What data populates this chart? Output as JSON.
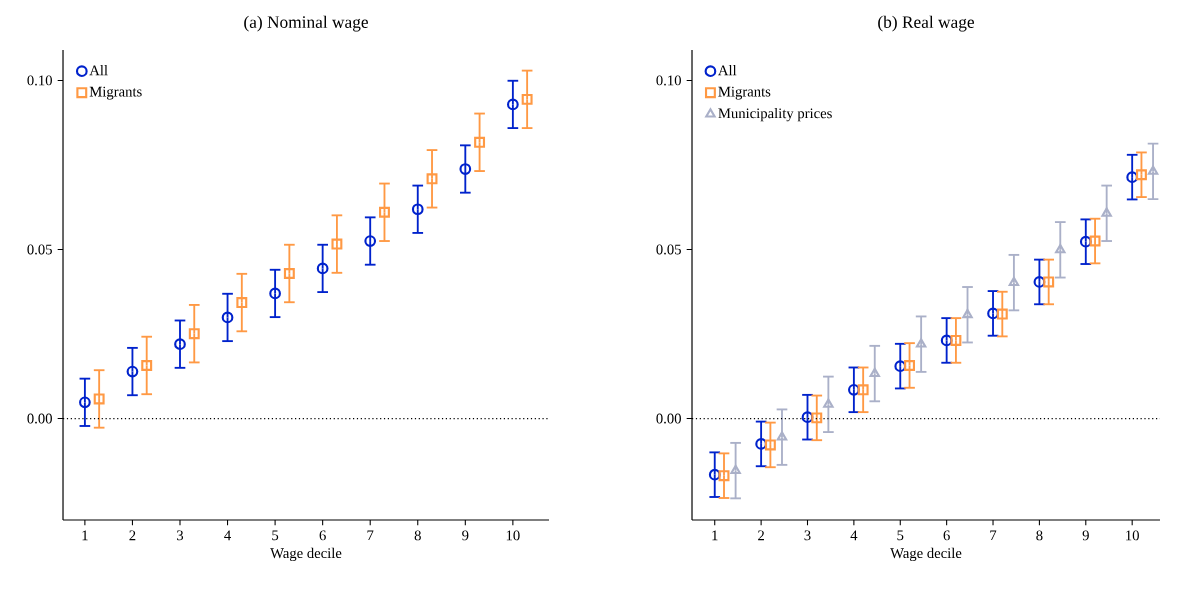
{
  "chart_data": [
    {
      "type": "scatter",
      "title": "(a) Nominal wage",
      "xlabel": "Wage decile",
      "xlim": [
        0.54,
        10.76
      ],
      "xticks": [
        1,
        2,
        3,
        4,
        5,
        6,
        7,
        8,
        9,
        10
      ],
      "ylim": [
        -0.03,
        0.109
      ],
      "yticks": [
        {
          "value": 0,
          "label": "0.00"
        },
        {
          "value": 0.05,
          "label": "0.05"
        },
        {
          "value": 0.1,
          "label": "0.10"
        }
      ],
      "legend": "top left",
      "grid": false,
      "ref_lines": [
        {
          "axis": "y",
          "value": 0,
          "line_style": "dotted",
          "color": "#000000"
        }
      ],
      "series": [
        {
          "name": "All",
          "color": "#0022cc",
          "marker": "circle",
          "x": [
            1,
            2,
            3,
            4,
            5,
            6,
            7,
            8,
            9,
            10
          ],
          "values": [
            0.0048,
            0.0139,
            0.022,
            0.0299,
            0.037,
            0.0444,
            0.0525,
            0.0619,
            0.0738,
            0.0929
          ],
          "errors": [
            0.007,
            0.007,
            0.007,
            0.007,
            0.007,
            0.007,
            0.007,
            0.007,
            0.007,
            0.007
          ]
        },
        {
          "name": "Migrants",
          "color": "#ff9944",
          "marker": "square",
          "x": [
            1.3,
            2.3,
            3.3,
            4.3,
            5.3,
            6.3,
            7.3,
            8.3,
            9.3,
            10.3
          ],
          "values": [
            0.0058,
            0.0157,
            0.0251,
            0.0343,
            0.0429,
            0.0516,
            0.061,
            0.0709,
            0.0817,
            0.0944
          ],
          "errors": [
            0.0085,
            0.0085,
            0.0085,
            0.0085,
            0.0085,
            0.0085,
            0.0085,
            0.0085,
            0.0085,
            0.0085
          ]
        }
      ]
    },
    {
      "type": "scatter",
      "title": "(b) Real wage",
      "xlabel": "Wage decile",
      "xlim": [
        0.51,
        10.6
      ],
      "xticks": [
        1,
        2,
        3,
        4,
        5,
        6,
        7,
        8,
        9,
        10
      ],
      "ylim": [
        -0.03,
        0.109
      ],
      "yticks": [
        {
          "value": 0,
          "label": "0.00"
        },
        {
          "value": 0.05,
          "label": "0.05"
        },
        {
          "value": 0.1,
          "label": "0.10"
        }
      ],
      "legend": "top left",
      "grid": false,
      "ref_lines": [
        {
          "axis": "y",
          "value": 0,
          "line_style": "dotted",
          "color": "#000000"
        }
      ],
      "series": [
        {
          "name": "All",
          "color": "#0022cc",
          "marker": "circle",
          "x": [
            1,
            2,
            3,
            4,
            5,
            6,
            7,
            8,
            9,
            10
          ],
          "values": [
            -0.0166,
            -0.0075,
            0.0004,
            0.0085,
            0.0155,
            0.0231,
            0.0311,
            0.0404,
            0.0523,
            0.0714
          ],
          "errors": [
            0.0066,
            0.0066,
            0.0066,
            0.0066,
            0.0066,
            0.0066,
            0.0066,
            0.0066,
            0.0066,
            0.0066
          ]
        },
        {
          "name": "Migrants",
          "color": "#ff9944",
          "marker": "square",
          "x": [
            1.2,
            2.2,
            3.2,
            4.2,
            5.2,
            6.2,
            7.2,
            8.2,
            9.2,
            10.2
          ],
          "values": [
            -0.0169,
            -0.0078,
            0.0002,
            0.0085,
            0.0157,
            0.0231,
            0.0309,
            0.0404,
            0.0525,
            0.0721
          ],
          "errors": [
            0.0066,
            0.0066,
            0.0066,
            0.0066,
            0.0066,
            0.0066,
            0.0066,
            0.0066,
            0.0066,
            0.0066
          ]
        },
        {
          "name": "Municipality prices",
          "color": "#aab0c8",
          "marker": "triangle",
          "x": [
            1.45,
            2.45,
            3.45,
            4.45,
            5.45,
            6.45,
            7.45,
            8.45,
            9.45,
            10.45
          ],
          "values": [
            -0.0154,
            -0.0055,
            0.0042,
            0.0133,
            0.022,
            0.0307,
            0.0402,
            0.0499,
            0.0607,
            0.0731
          ],
          "errors": [
            0.0082,
            0.0082,
            0.0082,
            0.0082,
            0.0082,
            0.0082,
            0.0082,
            0.0082,
            0.0082,
            0.0082
          ]
        }
      ]
    }
  ]
}
